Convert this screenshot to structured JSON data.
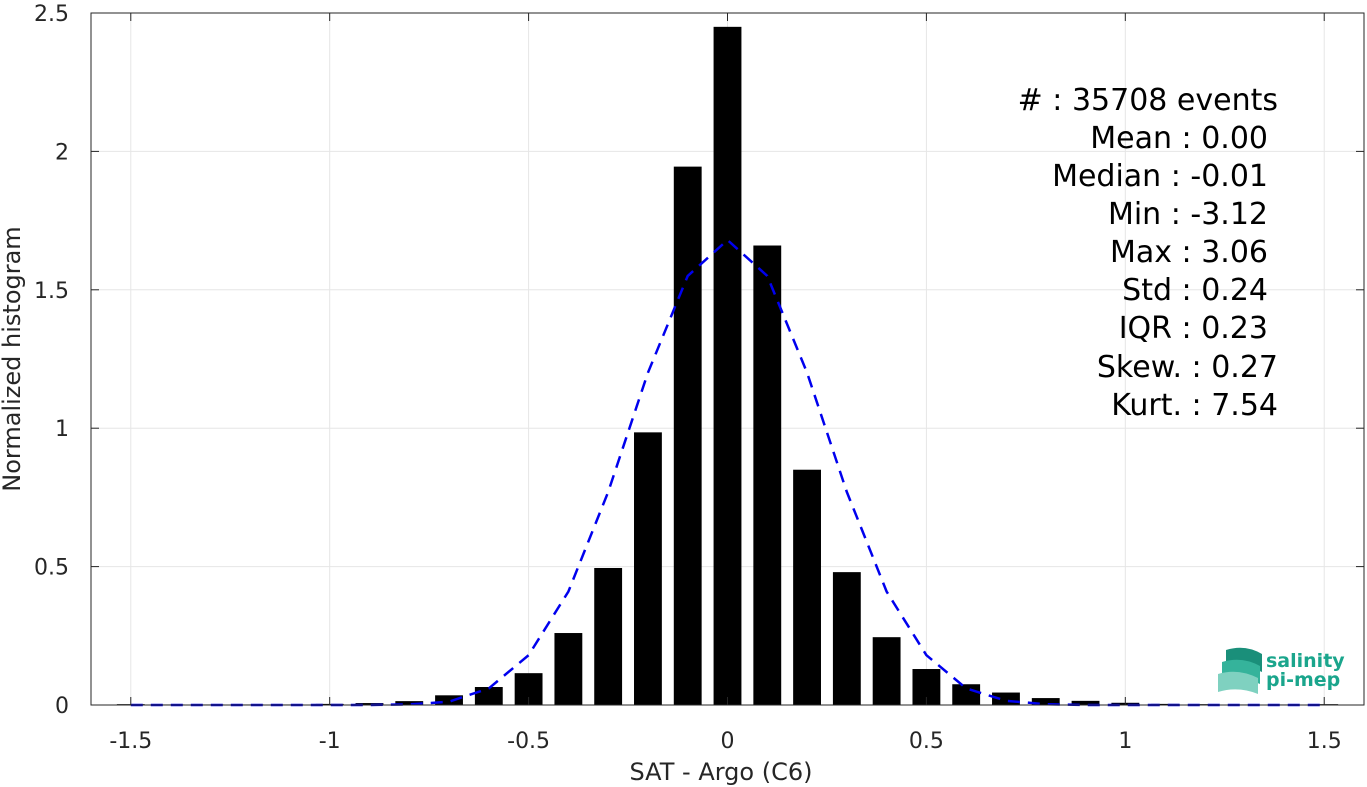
{
  "chart_data": {
    "type": "bar",
    "xlabel": "SAT - Argo (C6)",
    "ylabel": "Normalized histogram",
    "xlim": [
      -1.6,
      1.6
    ],
    "ylim": [
      0,
      2.5
    ],
    "xticks": [
      -1.5,
      -1,
      -0.5,
      0,
      0.5,
      1,
      1.5
    ],
    "xtick_labels": [
      "-1.5",
      "-1",
      "-0.5",
      "0",
      "0.5",
      "1",
      "1.5"
    ],
    "yticks": [
      0,
      0.5,
      1,
      1.5,
      2,
      2.5
    ],
    "ytick_labels": [
      "0",
      "0.5",
      "1",
      "1.5",
      "2",
      "2.5"
    ],
    "grid": true,
    "bar_width": 0.07,
    "bars": {
      "x": [
        -1.5,
        -1.4,
        -1.3,
        -1.2,
        -1.1,
        -1.0,
        -0.9,
        -0.8,
        -0.7,
        -0.6,
        -0.5,
        -0.4,
        -0.3,
        -0.2,
        -0.1,
        0.0,
        0.1,
        0.2,
        0.3,
        0.4,
        0.5,
        0.6,
        0.7,
        0.8,
        0.9,
        1.0,
        1.1,
        1.2,
        1.3,
        1.4,
        1.5
      ],
      "values": [
        0.003,
        0.002,
        0.002,
        0.002,
        0.002,
        0.004,
        0.007,
        0.014,
        0.035,
        0.065,
        0.115,
        0.26,
        0.495,
        0.985,
        1.945,
        2.45,
        1.66,
        0.85,
        0.48,
        0.245,
        0.13,
        0.075,
        0.045,
        0.025,
        0.015,
        0.008,
        0.004,
        0.003,
        0.002,
        0.002,
        0.003
      ]
    },
    "fit_curve": {
      "style": "dashed",
      "color": "#0000ee",
      "x": [
        -1.5,
        -1.4,
        -1.3,
        -1.2,
        -1.1,
        -1.0,
        -0.9,
        -0.8,
        -0.7,
        -0.6,
        -0.5,
        -0.4,
        -0.3,
        -0.2,
        -0.1,
        0.0,
        0.1,
        0.2,
        0.3,
        0.4,
        0.5,
        0.6,
        0.7,
        0.8,
        0.9,
        1.0,
        1.1,
        1.2,
        1.3,
        1.4,
        1.5
      ],
      "values": [
        0.0,
        0.0,
        0.0,
        0.0,
        0.0,
        0.0,
        0.0,
        0.002,
        0.012,
        0.06,
        0.18,
        0.41,
        0.77,
        1.2,
        1.55,
        1.68,
        1.55,
        1.2,
        0.77,
        0.41,
        0.18,
        0.06,
        0.015,
        0.003,
        0.0,
        0.0,
        0.0,
        0.0,
        0.0,
        0.0,
        0.0
      ]
    },
    "bar_color": "#000000"
  },
  "stats": [
    {
      "label": "#  : 35708 events"
    },
    {
      "label": "Mean : 0.00"
    },
    {
      "label": "Median : -0.01"
    },
    {
      "label": "Min : -3.12"
    },
    {
      "label": "Max : 3.06"
    },
    {
      "label": "Std : 0.24"
    },
    {
      "label": "IQR : 0.23"
    },
    {
      "label": "Skew. : 0.27"
    },
    {
      "label": "Kurt. : 7.54"
    }
  ],
  "logo": {
    "line1": "salinity",
    "line2": "pi-mep",
    "color": "#1aa58c"
  }
}
